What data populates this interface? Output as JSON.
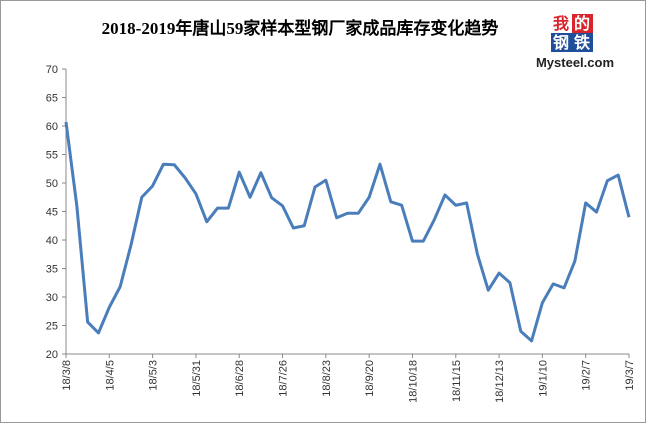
{
  "chart_data": {
    "type": "line",
    "title": "2018-2019年唐山59家样本型钢厂家成品库存变化趋势",
    "logo": [
      "我",
      "的",
      "钢",
      "铁"
    ],
    "logo_site": "Mysteel.com",
    "categories": [
      "18/3/8",
      null,
      null,
      null,
      "18/4/5",
      null,
      null,
      null,
      "18/5/3",
      null,
      null,
      null,
      "18/5/31",
      null,
      null,
      null,
      "18/6/28",
      null,
      null,
      null,
      "18/7/26",
      null,
      null,
      null,
      "18/8/23",
      null,
      null,
      null,
      "18/9/20",
      null,
      null,
      null,
      "18/10/18",
      null,
      null,
      null,
      "18/11/15",
      null,
      null,
      null,
      "18/12/13",
      null,
      null,
      null,
      "19/1/10",
      null,
      null,
      null,
      "19/2/7",
      null,
      null,
      null,
      "19/3/7"
    ],
    "series": [
      {
        "color": "#4a7ebb",
        "values": [
          60.7,
          46,
          25.6,
          23.7,
          28.2,
          31.8,
          39.1,
          47.5,
          49.5,
          53.3,
          53.2,
          50.9,
          48.1,
          43.2,
          45.6,
          45.6,
          51.9,
          47.5,
          51.8,
          47.4,
          46.0,
          42.1,
          42.5,
          49.3,
          50.5,
          43.9,
          44.7,
          44.7,
          47.5,
          53.3,
          46.7,
          46.1,
          39.8,
          39.8,
          43.5,
          47.9,
          46.1,
          46.5,
          37.5,
          31.2,
          34.2,
          32.5,
          24.0,
          22.3,
          29.0,
          32.3,
          31.6,
          36.3,
          46.5,
          44.9,
          50.4,
          51.4,
          44.0
        ]
      }
    ],
    "ylim": [
      20,
      70
    ],
    "yticks": [
      20,
      25,
      30,
      35,
      40,
      45,
      50,
      55,
      60,
      65,
      70
    ],
    "grid": false
  }
}
